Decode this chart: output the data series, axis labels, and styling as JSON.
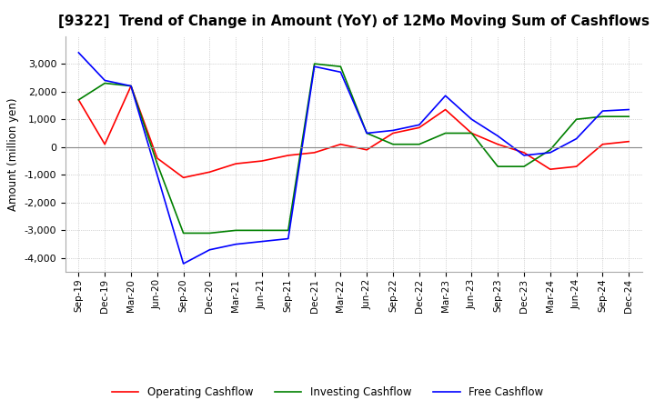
{
  "title": "[9322]  Trend of Change in Amount (YoY) of 12Mo Moving Sum of Cashflows",
  "ylabel": "Amount (million yen)",
  "x_labels": [
    "Sep-19",
    "Dec-19",
    "Mar-20",
    "Jun-20",
    "Sep-20",
    "Dec-20",
    "Mar-21",
    "Jun-21",
    "Sep-21",
    "Dec-21",
    "Mar-22",
    "Jun-22",
    "Sep-22",
    "Dec-22",
    "Mar-23",
    "Jun-23",
    "Sep-23",
    "Dec-23",
    "Mar-24",
    "Jun-24",
    "Sep-24",
    "Dec-24"
  ],
  "operating": [
    1700,
    100,
    2200,
    -400,
    -1100,
    -900,
    -600,
    -500,
    -300,
    -200,
    100,
    -100,
    500,
    700,
    1350,
    500,
    100,
    -200,
    -800,
    -700,
    100,
    200
  ],
  "investing": [
    1700,
    2300,
    2200,
    -600,
    -3100,
    -3100,
    -3000,
    -3000,
    -3000,
    3000,
    2900,
    500,
    100,
    100,
    500,
    500,
    -700,
    -700,
    -100,
    1000,
    1100,
    1100
  ],
  "free": [
    3400,
    2400,
    2200,
    -1000,
    -4200,
    -3700,
    -3500,
    -3400,
    -3300,
    2900,
    2700,
    500,
    600,
    800,
    1850,
    1000,
    400,
    -300,
    -200,
    300,
    1300,
    1350
  ],
  "ylim": [
    -4500,
    4000
  ],
  "yticks": [
    -4000,
    -3000,
    -2000,
    -1000,
    0,
    1000,
    2000,
    3000
  ],
  "operating_color": "#ff0000",
  "investing_color": "#008000",
  "free_color": "#0000ff",
  "bg_color": "#ffffff",
  "grid_color": "#b0b0b0",
  "title_fontsize": 11,
  "legend_labels": [
    "Operating Cashflow",
    "Investing Cashflow",
    "Free Cashflow"
  ]
}
